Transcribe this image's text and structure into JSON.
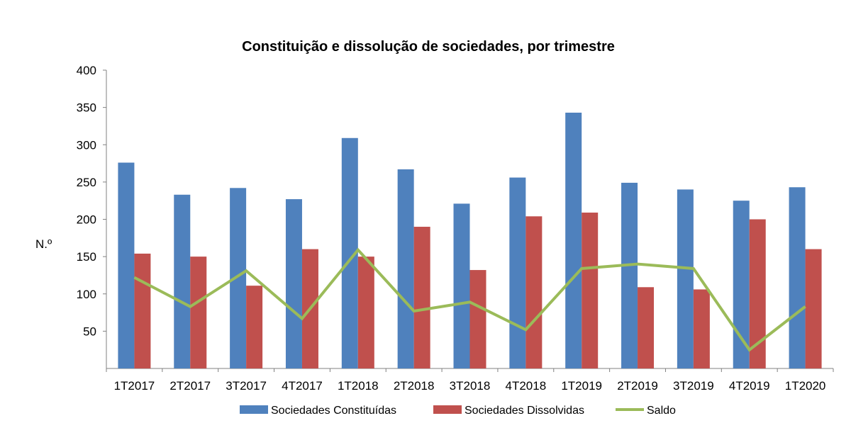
{
  "chart_data": {
    "type": "bar",
    "title": "Constituição e dissolução de sociedades, por trimestre",
    "ylabel": "N.º",
    "xlabel": "",
    "ylim": [
      0,
      400
    ],
    "yticks": [
      50,
      100,
      150,
      200,
      250,
      300,
      350,
      400
    ],
    "categories": [
      "1T2017",
      "2T2017",
      "3T2017",
      "4T2017",
      "1T2018",
      "2T2018",
      "3T2018",
      "4T2018",
      "1T2019",
      "2T2019",
      "3T2019",
      "4T2019",
      "1T2020"
    ],
    "series": [
      {
        "name": "Sociedades Constituídas",
        "kind": "bar",
        "color": "#4f81bd",
        "values": [
          276,
          233,
          242,
          227,
          309,
          267,
          221,
          256,
          343,
          249,
          240,
          225,
          243
        ]
      },
      {
        "name": "Sociedades Dissolvidas",
        "kind": "bar",
        "color": "#c0504d",
        "values": [
          154,
          150,
          111,
          160,
          150,
          190,
          132,
          204,
          209,
          109,
          106,
          200,
          160
        ]
      },
      {
        "name": "Saldo",
        "kind": "line",
        "color": "#9bbb59",
        "values": [
          122,
          83,
          131,
          67,
          159,
          77,
          89,
          52,
          134,
          140,
          134,
          25,
          83
        ]
      }
    ],
    "legend_position": "bottom",
    "grid": false
  }
}
